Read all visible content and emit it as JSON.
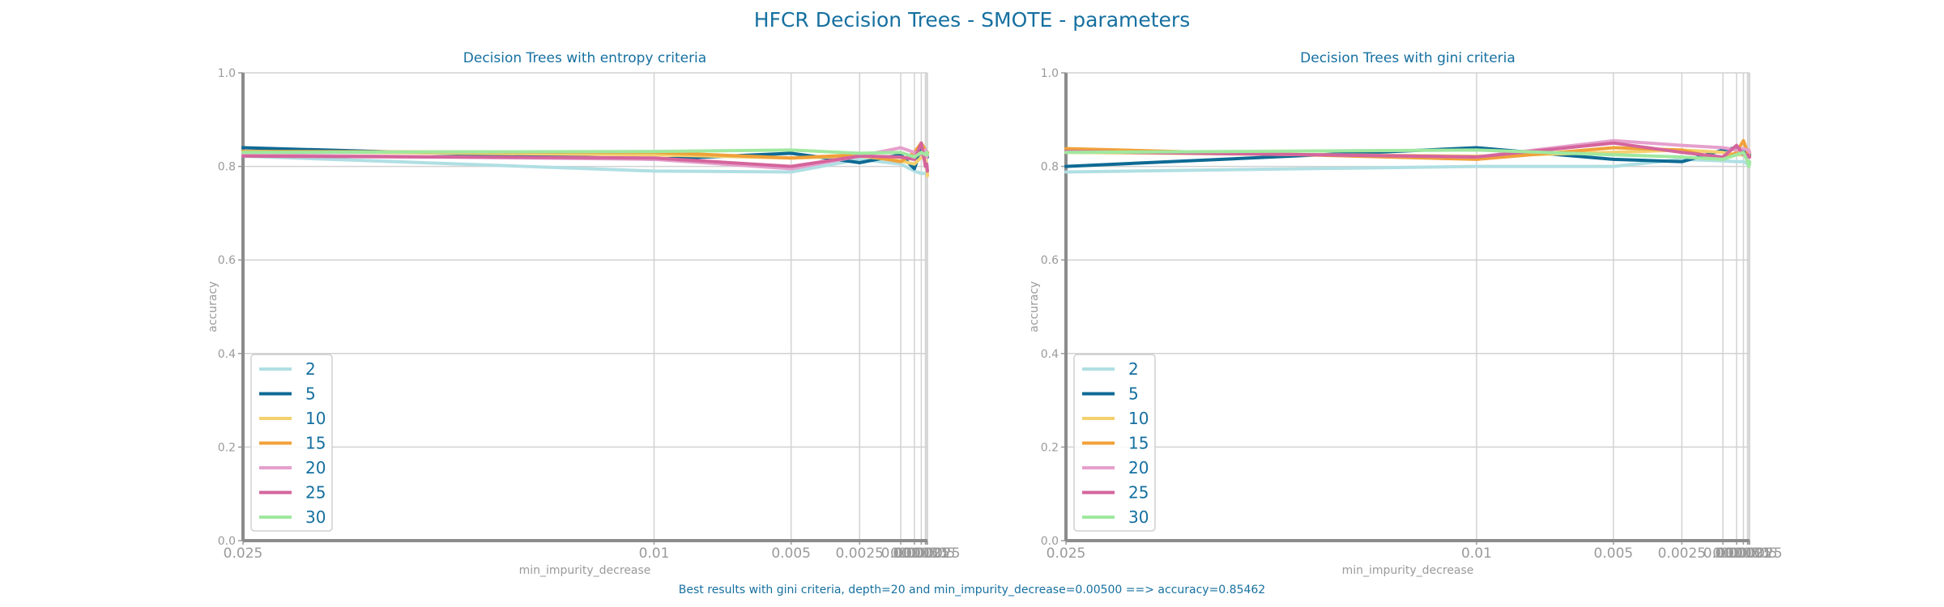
{
  "figure": {
    "title": "HFCR Decision Trees - SMOTE - parameters",
    "caption": "Best results with gini criteria, depth=20 and min_impurity_decrease=0.00500 ==> accuracy=0.85462"
  },
  "chart_data": [
    {
      "type": "line",
      "title": "Decision Trees with entropy criteria",
      "xlabel": "min_impurity_decrease",
      "ylabel": "accuracy",
      "ylim": [
        0,
        1
      ],
      "yticks": [
        "0.0",
        "0.2",
        "0.4",
        "0.6",
        "0.8",
        "1.0"
      ],
      "x": [
        0.025,
        0.01,
        0.005,
        0.0025,
        0.001,
        0.0005,
        0.00025,
        0.0001,
        5e-05,
        2.5e-05
      ],
      "xtick_labels": [
        "0.025",
        "0.01",
        "0.005",
        "0.0025",
        "0.001",
        "0.0005",
        "0.00025",
        "0.0001",
        "0.00005",
        "0.000025"
      ],
      "xscale": "reversed",
      "grid": true,
      "legend_position": "lower-left",
      "series": [
        {
          "name": "2",
          "color": "#b0dfe3",
          "values": [
            0.822,
            0.79,
            0.788,
            0.815,
            0.805,
            0.79,
            0.785,
            0.785,
            0.785,
            0.785
          ]
        },
        {
          "name": "5",
          "color": "#0e6a94",
          "values": [
            0.84,
            0.815,
            0.828,
            0.808,
            0.825,
            0.795,
            0.84,
            0.835,
            0.825,
            0.82
          ]
        },
        {
          "name": "10",
          "color": "#f4d06f",
          "values": [
            0.832,
            0.825,
            0.818,
            0.822,
            0.812,
            0.805,
            0.82,
            0.815,
            0.8,
            0.78
          ]
        },
        {
          "name": "15",
          "color": "#f0a13a",
          "values": [
            0.832,
            0.83,
            0.818,
            0.825,
            0.81,
            0.83,
            0.85,
            0.835,
            0.82,
            0.83
          ]
        },
        {
          "name": "20",
          "color": "#e5a0cc",
          "values": [
            0.825,
            0.815,
            0.795,
            0.822,
            0.84,
            0.83,
            0.825,
            0.835,
            0.82,
            0.825
          ]
        },
        {
          "name": "25",
          "color": "#d4659c",
          "values": [
            0.822,
            0.818,
            0.8,
            0.822,
            0.82,
            0.815,
            0.85,
            0.8,
            0.805,
            0.79
          ]
        },
        {
          "name": "30",
          "color": "#a0e8a0",
          "values": [
            0.83,
            0.832,
            0.835,
            0.828,
            0.83,
            0.82,
            0.83,
            0.825,
            0.83,
            0.825
          ]
        }
      ]
    },
    {
      "type": "line",
      "title": "Decision Trees with gini criteria",
      "xlabel": "min_impurity_decrease",
      "ylabel": "accuracy",
      "ylim": [
        0,
        1
      ],
      "yticks": [
        "0.0",
        "0.2",
        "0.4",
        "0.6",
        "0.8",
        "1.0"
      ],
      "x": [
        0.025,
        0.01,
        0.005,
        0.0025,
        0.001,
        0.0005,
        0.00025,
        0.0001,
        5e-05,
        2.5e-05
      ],
      "xtick_labels": [
        "0.025",
        "0.01",
        "0.005",
        "0.0025",
        "0.001",
        "0.0005",
        "0.00025",
        "0.0001",
        "0.00005",
        "0.000025"
      ],
      "xscale": "reversed",
      "grid": true,
      "legend_position": "lower-left",
      "series": [
        {
          "name": "2",
          "color": "#b0dfe3",
          "values": [
            0.788,
            0.8,
            0.8,
            0.815,
            0.812,
            0.81,
            0.81,
            0.805,
            0.805,
            0.805
          ]
        },
        {
          "name": "5",
          "color": "#0e6a94",
          "values": [
            0.8,
            0.84,
            0.815,
            0.81,
            0.835,
            0.84,
            0.835,
            0.83,
            0.828,
            0.825
          ]
        },
        {
          "name": "10",
          "color": "#f4d06f",
          "values": [
            0.83,
            0.822,
            0.83,
            0.835,
            0.83,
            0.825,
            0.825,
            0.825,
            0.82,
            0.82
          ]
        },
        {
          "name": "15",
          "color": "#f0a13a",
          "values": [
            0.838,
            0.815,
            0.84,
            0.835,
            0.815,
            0.83,
            0.855,
            0.83,
            0.825,
            0.83
          ]
        },
        {
          "name": "20",
          "color": "#e5a0cc",
          "values": [
            0.832,
            0.82,
            0.855,
            0.845,
            0.84,
            0.835,
            0.838,
            0.835,
            0.835,
            0.83
          ]
        },
        {
          "name": "25",
          "color": "#d4659c",
          "values": [
            0.832,
            0.82,
            0.85,
            0.83,
            0.82,
            0.845,
            0.825,
            0.825,
            0.82,
            0.82
          ]
        },
        {
          "name": "30",
          "color": "#a0e8a0",
          "values": [
            0.83,
            0.835,
            0.825,
            0.82,
            0.815,
            0.825,
            0.83,
            0.81,
            0.8,
            0.81
          ]
        }
      ]
    }
  ]
}
